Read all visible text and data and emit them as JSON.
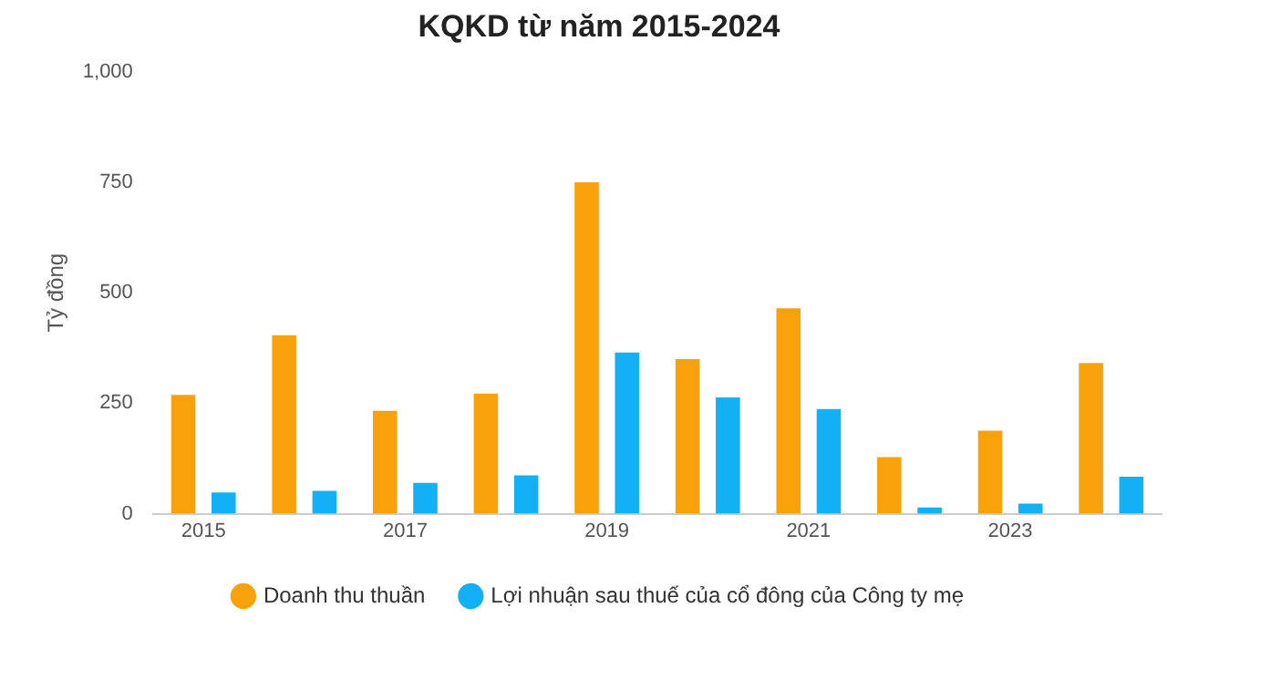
{
  "chart_data": {
    "type": "bar",
    "title": "KQKD từ năm 2015-2024",
    "ylabel": "Tỷ đồng",
    "categories": [
      "2015",
      null,
      "2017",
      null,
      "2019",
      null,
      "2021",
      null,
      "2023",
      null
    ],
    "series": [
      {
        "name": "Doanh thu thuần",
        "color": "#f9a10a",
        "values": [
          269,
          404,
          233,
          272,
          750,
          350,
          465,
          128,
          188,
          341
        ]
      },
      {
        "name": "Lợi nhuận sau thuế của cổ đông của Công ty mẹ",
        "color": "#13b0f5",
        "values": [
          48,
          52,
          70,
          87,
          365,
          263,
          237,
          14,
          23,
          84
        ]
      }
    ],
    "ylim": [
      0,
      1000
    ],
    "yticks": [
      0,
      250,
      500,
      750,
      {
        "value": 1000,
        "label": "1,000"
      }
    ],
    "grid": false,
    "legend": "bottom"
  }
}
